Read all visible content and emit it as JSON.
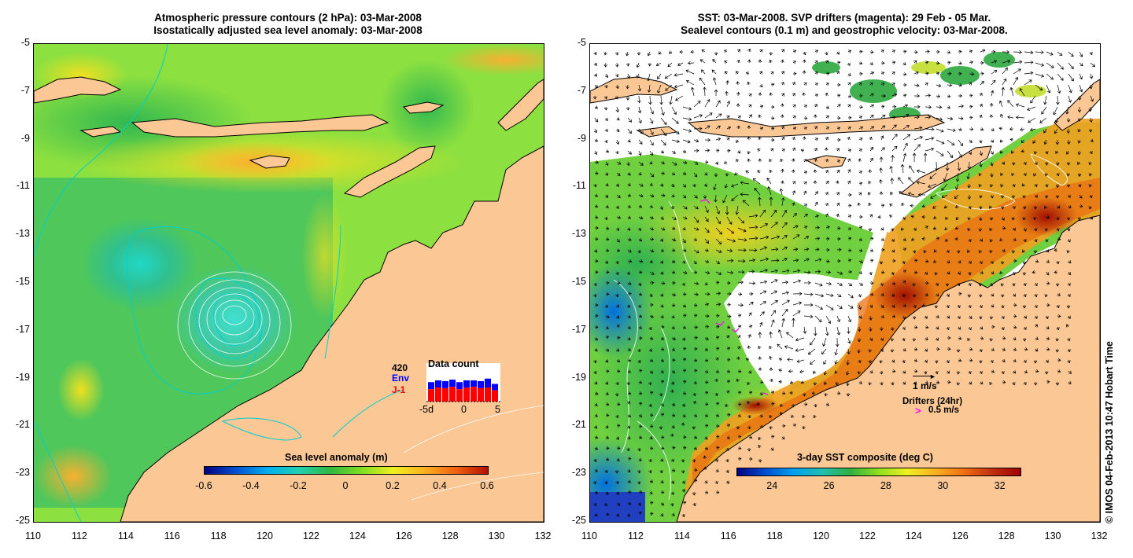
{
  "left_panel": {
    "title_line1": "Atmospheric pressure contours (2 hPa): 03-Mar-2008",
    "title_line2": "Isostatically adjusted sea level anomaly: 03-Mar-2008",
    "colorbar": {
      "label": "Sea level anomaly (m)",
      "ticks": [
        "-0.6",
        "-0.4",
        "-0.2",
        "0",
        "0.2",
        "0.4",
        "0.6"
      ]
    },
    "data_count": {
      "title": "Data count",
      "count": "420",
      "series1": "Env",
      "series2": "J-1",
      "xticks": [
        "-5d",
        "0",
        "5"
      ],
      "env_values": [
        0.55,
        0.6,
        0.58,
        0.62,
        0.55,
        0.6,
        0.6,
        0.58,
        0.65,
        0.5
      ],
      "j1_values": [
        0.35,
        0.4,
        0.38,
        0.42,
        0.35,
        0.4,
        0.42,
        0.38,
        0.4,
        0.32
      ],
      "colors": {
        "env": "#0000ff",
        "j1": "#ff0000"
      }
    }
  },
  "right_panel": {
    "title_line1": "SST: 03-Mar-2008. SVP drifters (magenta): 29 Feb - 05 Mar.",
    "title_line2": "Sealevel contours (0.1 m) and geostrophic velocity: 03-Mar-2008.",
    "colorbar": {
      "label": "3-day SST composite (deg C)",
      "ticks": [
        "24",
        "26",
        "28",
        "30",
        "32"
      ]
    },
    "velocity_scale": "1 m/s",
    "drifters_label": "Drifters (24hr)",
    "drifters_speed": "0.5 m/s",
    "drifter_marker": ">"
  },
  "axes": {
    "x_ticks": [
      "110",
      "112",
      "114",
      "116",
      "118",
      "120",
      "122",
      "124",
      "126",
      "128",
      "130",
      "132"
    ],
    "y_ticks": [
      "-5",
      "-7",
      "-9",
      "-11",
      "-13",
      "-15",
      "-17",
      "-19",
      "-21",
      "-23",
      "-25"
    ],
    "lon_range": [
      110,
      132
    ],
    "lat_range": [
      -25,
      -5
    ]
  },
  "colors": {
    "land": "#fbc895",
    "no_data": "#ffffff",
    "pressure_contour": "#00d0d0",
    "sla_contour": "#ffffff",
    "drifter": "#ff00ff"
  },
  "copyright": "© IMOS 04-Feb-2013 10:47 Hobart Time"
}
